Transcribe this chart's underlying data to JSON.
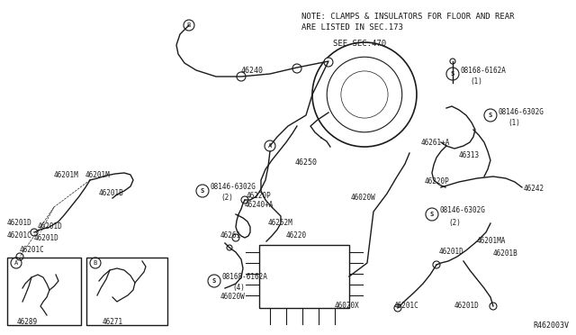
{
  "bg_color": "#ffffff",
  "line_color": "#1a1a1a",
  "text_color": "#1a1a1a",
  "fig_width": 6.4,
  "fig_height": 3.72,
  "dpi": 100,
  "note_line1": "NOTE: CLAMPS & INSULATORS FOR FLOOR AND REAR",
  "note_line2": "ARE LISTED IN SEC.173",
  "note_see": "SEE SEC.470",
  "ref_code": "R462003V"
}
